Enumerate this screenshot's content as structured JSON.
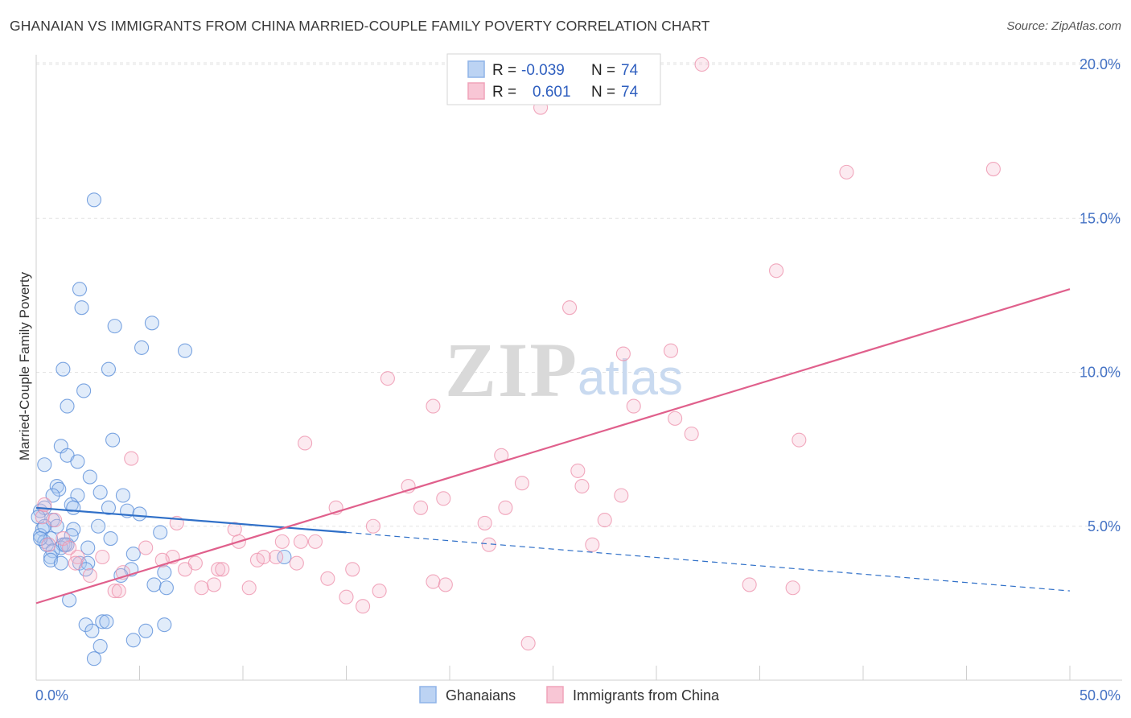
{
  "title": "GHANAIAN VS IMMIGRANTS FROM CHINA MARRIED-COUPLE FAMILY POVERTY CORRELATION CHART",
  "source": "Source: ZipAtlas.com",
  "watermark": {
    "zip": "ZIP",
    "atlas": "atlas"
  },
  "legend": {
    "r_label": "R =",
    "n_label": "N =",
    "rows": [
      {
        "name": "Ghanaians",
        "r": "-0.039",
        "n": "74",
        "color": "#8fb4e8",
        "fill": "#bcd3f3"
      },
      {
        "name": "Immigrants from China",
        "r": "0.601",
        "n": "74",
        "color": "#f0a3ba",
        "fill": "#f8c6d5"
      }
    ]
  },
  "chart_data": {
    "type": "scatter",
    "title": "GHANAIAN VS IMMIGRANTS FROM CHINA MARRIED-COUPLE FAMILY POVERTY CORRELATION CHART",
    "xlabel": "",
    "ylabel": "Married-Couple Family Poverty",
    "xlim": [
      0,
      50
    ],
    "ylim": [
      0,
      20.5
    ],
    "x_tick_labels": [
      {
        "value": 0,
        "label": "0.0%"
      },
      {
        "value": 50,
        "label": "50.0%"
      }
    ],
    "y_tick_labels": [
      {
        "value": 5,
        "label": "5.0%"
      },
      {
        "value": 10,
        "label": "10.0%"
      },
      {
        "value": 15,
        "label": "15.0%"
      },
      {
        "value": 20,
        "label": "20.0%"
      }
    ],
    "series": [
      {
        "name": "Ghanaians",
        "color": "#5b8fd9",
        "trend": {
          "x0": 0,
          "y0": 5.6,
          "x_solid_end": 15,
          "y_solid_end": 4.8,
          "x1": 50,
          "y1": 2.9,
          "color": "#3070c8"
        },
        "points": [
          [
            2.8,
            15.6
          ],
          [
            2.1,
            12.7
          ],
          [
            2.2,
            12.1
          ],
          [
            3.8,
            11.5
          ],
          [
            5.6,
            11.6
          ],
          [
            5.1,
            10.8
          ],
          [
            7.2,
            10.7
          ],
          [
            1.3,
            10.1
          ],
          [
            3.5,
            10.1
          ],
          [
            2.3,
            9.4
          ],
          [
            1.5,
            8.9
          ],
          [
            3.7,
            7.8
          ],
          [
            1.2,
            7.6
          ],
          [
            1.5,
            7.3
          ],
          [
            0.4,
            7.0
          ],
          [
            2.0,
            7.1
          ],
          [
            2.6,
            6.6
          ],
          [
            1.0,
            6.3
          ],
          [
            1.1,
            6.2
          ],
          [
            3.1,
            6.1
          ],
          [
            4.2,
            6.0
          ],
          [
            0.8,
            6.0
          ],
          [
            2.0,
            6.0
          ],
          [
            1.7,
            5.7
          ],
          [
            1.8,
            5.6
          ],
          [
            4.4,
            5.5
          ],
          [
            5.0,
            5.4
          ],
          [
            3.5,
            5.6
          ],
          [
            0.2,
            5.5
          ],
          [
            0.4,
            5.6
          ],
          [
            0.1,
            5.3
          ],
          [
            0.8,
            5.2
          ],
          [
            1.0,
            5.0
          ],
          [
            0.3,
            4.9
          ],
          [
            1.8,
            4.9
          ],
          [
            3.0,
            5.0
          ],
          [
            6.0,
            4.8
          ],
          [
            0.2,
            4.7
          ],
          [
            0.4,
            4.5
          ],
          [
            0.7,
            4.6
          ],
          [
            1.7,
            4.7
          ],
          [
            3.6,
            4.6
          ],
          [
            0.5,
            4.4
          ],
          [
            1.3,
            4.4
          ],
          [
            1.5,
            4.4
          ],
          [
            1.2,
            4.3
          ],
          [
            2.5,
            4.3
          ],
          [
            0.8,
            4.2
          ],
          [
            4.7,
            4.1
          ],
          [
            0.7,
            4.0
          ],
          [
            12.0,
            4.0
          ],
          [
            0.7,
            3.9
          ],
          [
            1.2,
            3.8
          ],
          [
            2.1,
            3.8
          ],
          [
            2.5,
            3.8
          ],
          [
            4.6,
            3.6
          ],
          [
            2.4,
            3.6
          ],
          [
            6.2,
            3.5
          ],
          [
            4.1,
            3.4
          ],
          [
            5.7,
            3.1
          ],
          [
            6.3,
            3.0
          ],
          [
            1.6,
            2.6
          ],
          [
            2.4,
            1.8
          ],
          [
            3.2,
            1.9
          ],
          [
            3.4,
            1.9
          ],
          [
            6.2,
            1.8
          ],
          [
            2.7,
            1.6
          ],
          [
            5.3,
            1.6
          ],
          [
            4.7,
            1.3
          ],
          [
            3.1,
            1.1
          ],
          [
            2.8,
            0.7
          ],
          [
            1.4,
            4.4
          ],
          [
            0.4,
            5.0
          ],
          [
            0.2,
            4.6
          ]
        ]
      },
      {
        "name": "Immigrants from China",
        "color": "#ee93ae",
        "trend": {
          "x0": 0,
          "y0": 2.5,
          "x1": 50,
          "y1": 12.7,
          "color": "#e0608c"
        },
        "points": [
          [
            32.2,
            20.0
          ],
          [
            24.4,
            18.6
          ],
          [
            39.2,
            16.5
          ],
          [
            46.3,
            16.6
          ],
          [
            35.8,
            13.3
          ],
          [
            25.8,
            12.1
          ],
          [
            28.4,
            10.6
          ],
          [
            30.7,
            10.7
          ],
          [
            17.0,
            9.8
          ],
          [
            19.2,
            8.9
          ],
          [
            28.9,
            8.9
          ],
          [
            30.9,
            8.5
          ],
          [
            31.7,
            8.0
          ],
          [
            36.9,
            7.8
          ],
          [
            13.0,
            7.7
          ],
          [
            4.6,
            7.2
          ],
          [
            22.5,
            7.3
          ],
          [
            26.2,
            6.8
          ],
          [
            23.5,
            6.4
          ],
          [
            26.4,
            6.3
          ],
          [
            18.0,
            6.3
          ],
          [
            28.3,
            6.0
          ],
          [
            19.7,
            5.9
          ],
          [
            18.6,
            5.6
          ],
          [
            14.5,
            5.6
          ],
          [
            22.7,
            5.6
          ],
          [
            27.5,
            5.2
          ],
          [
            21.7,
            5.1
          ],
          [
            16.3,
            5.0
          ],
          [
            6.8,
            5.1
          ],
          [
            9.6,
            4.9
          ],
          [
            11.9,
            4.5
          ],
          [
            13.5,
            4.5
          ],
          [
            9.8,
            4.5
          ],
          [
            12.8,
            4.5
          ],
          [
            21.9,
            4.4
          ],
          [
            26.9,
            4.4
          ],
          [
            0.3,
            5.3
          ],
          [
            0.4,
            5.7
          ],
          [
            0.9,
            5.2
          ],
          [
            1.3,
            4.6
          ],
          [
            0.6,
            4.4
          ],
          [
            1.6,
            4.3
          ],
          [
            2.0,
            4.0
          ],
          [
            5.3,
            4.3
          ],
          [
            3.2,
            4.0
          ],
          [
            6.6,
            4.0
          ],
          [
            1.9,
            3.8
          ],
          [
            6.1,
            3.9
          ],
          [
            10.7,
            3.9
          ],
          [
            11.6,
            4.0
          ],
          [
            11.0,
            4.0
          ],
          [
            12.6,
            3.8
          ],
          [
            7.7,
            3.8
          ],
          [
            8.8,
            3.6
          ],
          [
            9.0,
            3.6
          ],
          [
            7.2,
            3.6
          ],
          [
            15.3,
            3.6
          ],
          [
            2.6,
            3.4
          ],
          [
            4.2,
            3.5
          ],
          [
            14.1,
            3.3
          ],
          [
            19.2,
            3.2
          ],
          [
            8.6,
            3.1
          ],
          [
            10.3,
            3.0
          ],
          [
            8.0,
            3.0
          ],
          [
            3.8,
            2.9
          ],
          [
            4.0,
            2.9
          ],
          [
            16.6,
            2.9
          ],
          [
            19.8,
            3.1
          ],
          [
            34.5,
            3.1
          ],
          [
            36.6,
            3.0
          ],
          [
            15.0,
            2.7
          ],
          [
            15.8,
            2.4
          ],
          [
            23.8,
            1.2
          ]
        ]
      }
    ]
  }
}
